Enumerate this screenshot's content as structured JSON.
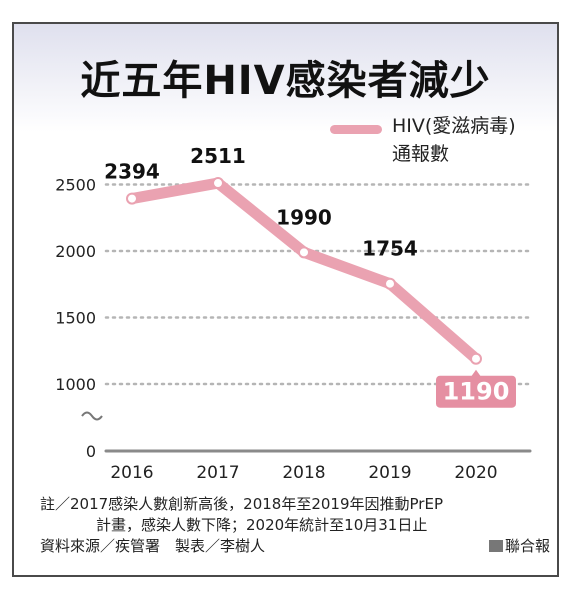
{
  "title": "近五年HIV感染者減少",
  "legend": {
    "label_line1": "HIV(愛滋病毒)",
    "label_line2": "通報數"
  },
  "colors": {
    "line": "#eaa2b1",
    "point_fill": "#ffffff",
    "highlight_box": "#e58fa2",
    "grid": "#b5b5b5"
  },
  "chart_data": {
    "type": "line",
    "x": [
      "2016",
      "2017",
      "2018",
      "2019",
      "2020"
    ],
    "series": [
      {
        "values": [
          2394,
          2511,
          1990,
          1754,
          1190
        ]
      }
    ],
    "data_labels": [
      "2394",
      "2511",
      "1990",
      "1754",
      "1190"
    ],
    "yticks": [
      0,
      1000,
      1500,
      2000,
      2500
    ],
    "ylim": [
      0,
      2500
    ],
    "axis_break": true,
    "grid": true,
    "legend_position": "top-right"
  },
  "notes": {
    "line1": "註／2017感染人數創新高後，2018年至2019年因推動PrEP",
    "line2": "計畫，感染人數下降；2020年統計至10月31日止",
    "line3": "資料來源／疾管署　製表／李樹人",
    "press": "聯合報"
  }
}
